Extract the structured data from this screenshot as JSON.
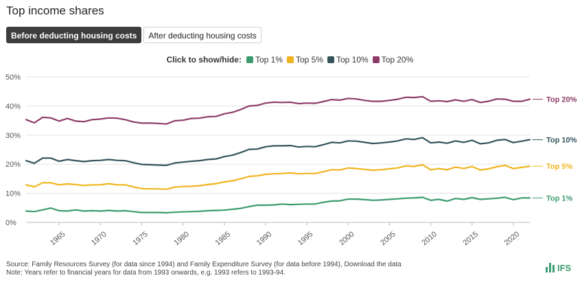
{
  "title": "Top income shares",
  "tabs": [
    {
      "label": "Before deducting housing costs",
      "active": true
    },
    {
      "label": "After deducting housing costs",
      "active": false
    }
  ],
  "legend": {
    "lead": "Click to show/hide:",
    "items": [
      "Top 1%",
      "Top 5%",
      "Top 10%",
      "Top 20%"
    ]
  },
  "colors": {
    "Top 1%": "#3c9b6e",
    "Top 5%": "#f0b51e",
    "Top 10%": "#33535b",
    "Top 20%": "#8e3c68"
  },
  "chart_data": {
    "type": "line",
    "xlim": [
      1961,
      2022
    ],
    "ylim": [
      0,
      50
    ],
    "yticks": [
      "0%",
      "10%",
      "20%",
      "30%",
      "40%",
      "50%"
    ],
    "ytick_values": [
      0,
      10,
      20,
      30,
      40,
      50
    ],
    "xticks": [
      1965,
      1970,
      1975,
      1980,
      1985,
      1990,
      1995,
      2000,
      2005,
      2010,
      2015,
      2020
    ],
    "grid": true,
    "x": [
      1961,
      1962,
      1963,
      1964,
      1965,
      1966,
      1967,
      1968,
      1969,
      1970,
      1971,
      1972,
      1973,
      1974,
      1975,
      1976,
      1977,
      1978,
      1979,
      1980,
      1981,
      1982,
      1983,
      1984,
      1985,
      1986,
      1987,
      1988,
      1989,
      1990,
      1991,
      1992,
      1993,
      1994,
      1995,
      1996,
      1997,
      1998,
      1999,
      2000,
      2001,
      2002,
      2003,
      2004,
      2005,
      2006,
      2007,
      2008,
      2009,
      2010,
      2011,
      2012,
      2013,
      2014,
      2015,
      2016,
      2017,
      2018,
      2019,
      2020,
      2021,
      2022
    ],
    "series": [
      {
        "name": "Top 20%",
        "values": [
          35.3,
          34.2,
          36.1,
          35.9,
          34.8,
          35.7,
          34.8,
          34.6,
          35.3,
          35.5,
          35.9,
          35.8,
          35.3,
          34.5,
          34.1,
          34.1,
          34.0,
          33.8,
          34.9,
          35.1,
          35.7,
          35.8,
          36.3,
          36.4,
          37.3,
          37.8,
          38.8,
          40.0,
          40.2,
          41.0,
          41.3,
          41.2,
          41.3,
          40.8,
          41.0,
          40.9,
          41.5,
          42.2,
          42.0,
          42.6,
          42.4,
          41.9,
          41.6,
          41.6,
          41.9,
          42.3,
          43.0,
          42.9,
          43.2,
          41.6,
          41.8,
          41.5,
          42.1,
          41.6,
          42.2,
          41.2,
          41.6,
          42.4,
          42.3,
          41.6,
          41.6,
          42.3
        ]
      },
      {
        "name": "Top 10%",
        "values": [
          21.2,
          20.3,
          22.1,
          22.1,
          21.0,
          21.6,
          21.2,
          20.9,
          21.2,
          21.3,
          21.6,
          21.3,
          21.2,
          20.5,
          19.9,
          19.8,
          19.7,
          19.6,
          20.4,
          20.7,
          21.0,
          21.2,
          21.6,
          21.8,
          22.6,
          23.1,
          24.0,
          25.1,
          25.2,
          26.0,
          26.3,
          26.3,
          26.4,
          25.9,
          26.1,
          26.0,
          26.7,
          27.5,
          27.3,
          28.0,
          27.9,
          27.5,
          27.1,
          27.3,
          27.6,
          28.0,
          28.7,
          28.5,
          29.1,
          27.3,
          27.6,
          27.2,
          28.0,
          27.5,
          28.2,
          27.0,
          27.3,
          28.2,
          28.5,
          27.4,
          27.9,
          28.4
        ]
      },
      {
        "name": "Top 5%",
        "values": [
          12.9,
          12.2,
          13.6,
          13.6,
          12.9,
          13.2,
          13.0,
          12.7,
          12.9,
          12.9,
          13.3,
          12.9,
          12.9,
          12.2,
          11.6,
          11.5,
          11.5,
          11.4,
          12.1,
          12.3,
          12.4,
          12.6,
          13.0,
          13.3,
          13.9,
          14.3,
          15.0,
          15.8,
          16.0,
          16.5,
          16.7,
          16.8,
          17.0,
          16.7,
          16.8,
          16.8,
          17.4,
          18.1,
          18.0,
          18.7,
          18.5,
          18.2,
          17.9,
          18.1,
          18.4,
          18.7,
          19.4,
          19.2,
          19.8,
          18.1,
          18.5,
          18.1,
          19.0,
          18.5,
          19.2,
          18.0,
          18.4,
          19.1,
          19.6,
          18.5,
          18.9,
          19.3
        ]
      },
      {
        "name": "Top 1%",
        "values": [
          3.9,
          3.7,
          4.3,
          4.9,
          4.0,
          3.9,
          4.3,
          3.9,
          4.0,
          3.9,
          4.1,
          3.9,
          4.0,
          3.7,
          3.4,
          3.4,
          3.4,
          3.3,
          3.5,
          3.6,
          3.7,
          3.8,
          4.0,
          4.1,
          4.2,
          4.5,
          4.8,
          5.4,
          5.9,
          5.9,
          6.0,
          6.3,
          6.1,
          6.2,
          6.3,
          6.3,
          6.9,
          7.3,
          7.4,
          8.0,
          8.0,
          7.8,
          7.6,
          7.7,
          7.9,
          8.1,
          8.3,
          8.4,
          8.6,
          7.6,
          7.9,
          7.3,
          8.2,
          7.9,
          8.5,
          7.9,
          8.1,
          8.3,
          8.6,
          7.8,
          8.4,
          8.4
        ]
      }
    ]
  },
  "footer": {
    "source": "Source: Family Resources Survey (for data since 1994) and Family Expenditure Survey (for data before 1994), Download the data",
    "note": "Note: Years refer to financial years for data from 1993 onwards, e.g. 1993 refers to 1993-94."
  },
  "logo": {
    "text": "IFS"
  }
}
